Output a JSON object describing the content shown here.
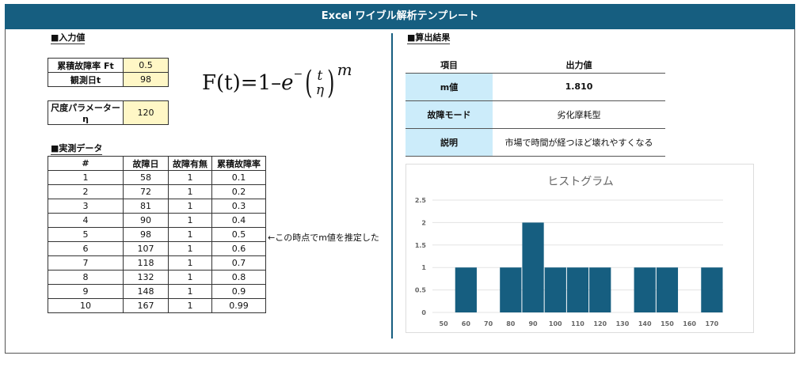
{
  "header": {
    "title": "Excel ワイブル解析テンプレート"
  },
  "input": {
    "section": "■入力値",
    "ft_label": "累積故障率 Ft",
    "ft_value": "0.5",
    "t_label": "観測日t",
    "t_value": "98",
    "eta_label": "尺度パラメーターη",
    "eta_value": "120"
  },
  "formula": {
    "lhs": "F(t)",
    "eq": "=",
    "one": "1–",
    "e": "e",
    "minus": "−",
    "num": "t",
    "den": "η",
    "exp": "m"
  },
  "data": {
    "section": "■実測データ",
    "headers": [
      "#",
      "故障日",
      "故障有無",
      "累積故障率"
    ],
    "rows": [
      [
        "1",
        "58",
        "1",
        "0.1"
      ],
      [
        "2",
        "72",
        "1",
        "0.2"
      ],
      [
        "3",
        "81",
        "1",
        "0.3"
      ],
      [
        "4",
        "90",
        "1",
        "0.4"
      ],
      [
        "5",
        "98",
        "1",
        "0.5"
      ],
      [
        "6",
        "107",
        "1",
        "0.6"
      ],
      [
        "7",
        "118",
        "1",
        "0.7"
      ],
      [
        "8",
        "132",
        "1",
        "0.8"
      ],
      [
        "9",
        "148",
        "1",
        "0.9"
      ],
      [
        "10",
        "167",
        "1",
        "0.99"
      ]
    ],
    "note": "←この時点でm値を推定した"
  },
  "result": {
    "section": "■算出結果",
    "headers": [
      "項目",
      "出力値"
    ],
    "rows": [
      [
        "m値",
        "1.810"
      ],
      [
        "故障モード",
        "劣化摩耗型"
      ],
      [
        "説明",
        "市場で時間が経つほど壊れやすくなる"
      ]
    ]
  },
  "chart_data": {
    "type": "bar",
    "title": "ヒストグラム",
    "categories": [
      "50",
      "60",
      "70",
      "80",
      "90",
      "100",
      "110",
      "120",
      "130",
      "140",
      "150",
      "160",
      "170"
    ],
    "values": [
      0,
      1,
      0,
      1,
      2,
      1,
      1,
      1,
      0,
      1,
      1,
      0,
      1
    ],
    "ylim": [
      0,
      2.5
    ],
    "yticks": [
      "0",
      "0.5",
      "1",
      "1.5",
      "2",
      "2.5"
    ],
    "color": "#165e80",
    "grid": true
  }
}
